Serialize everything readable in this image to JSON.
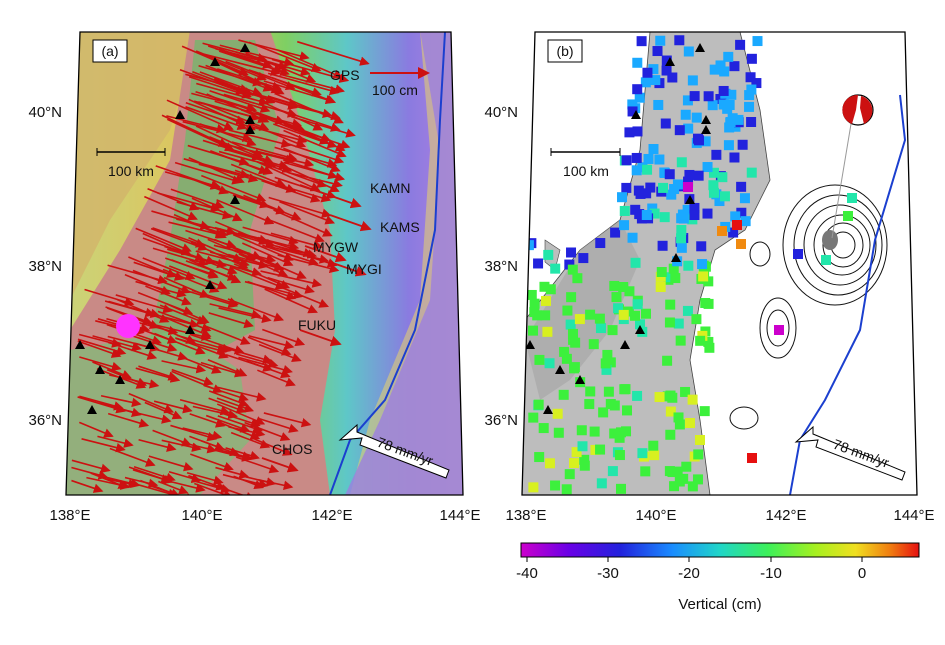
{
  "panel_a": {
    "label": "(a)",
    "lat_labels": [
      "40°N",
      "38°N",
      "36°N"
    ],
    "lon_labels": [
      "138°E",
      "140°E",
      "142°E",
      "144°E"
    ],
    "scale_label": "100 km",
    "gps_label": "GPS",
    "gps_scale": "100 cm",
    "rate_label": "78 mm/yr",
    "stations": [
      "KAMN",
      "KAMS",
      "MYGW",
      "MYGI",
      "FUKU",
      "CHOS"
    ]
  },
  "panel_b": {
    "label": "(b)",
    "lat_labels": [
      "40°N",
      "38°N",
      "36°N"
    ],
    "lon_labels": [
      "138°E",
      "140°E",
      "142°E",
      "144°E"
    ],
    "scale_label": "100 km",
    "rate_label": "78 mm/yr"
  },
  "colorbar": {
    "ticks": [
      "-40",
      "-30",
      "-20",
      "-10",
      "0"
    ],
    "title": "Vertical (cm)",
    "colors": [
      "#cc00cc",
      "#2222dd",
      "#1aa9ff",
      "#22e6aa",
      "#3cf03c",
      "#d8f020",
      "#f08a10",
      "#e61010"
    ]
  },
  "colors": {
    "vector": "#cc1111",
    "trench": "#1b3fcf",
    "land_relief_a": "#c98a86",
    "ocean_deep": "#a070d0"
  }
}
